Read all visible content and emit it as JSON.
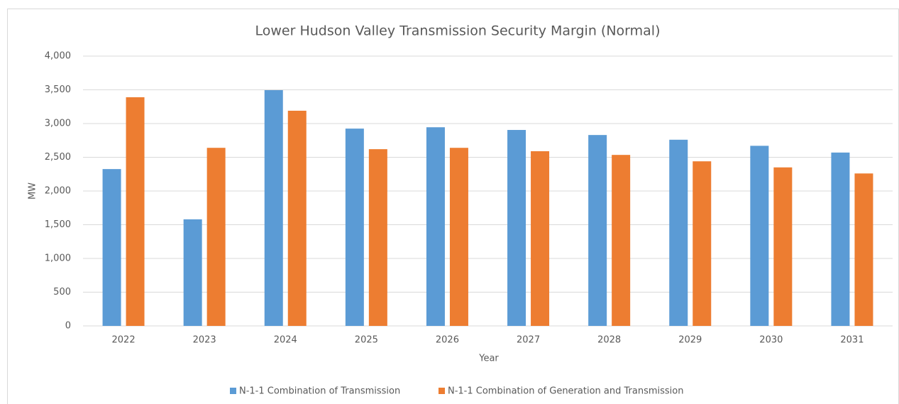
{
  "chart_data": {
    "type": "bar",
    "title": "Lower Hudson Valley Transmission Security Margin (Normal)",
    "x_label": "Year",
    "y_label": "MW",
    "categories": [
      "2022",
      "2023",
      "2024",
      "2025",
      "2026",
      "2027",
      "2028",
      "2029",
      "2030",
      "2031"
    ],
    "series": [
      {
        "name": "N-1-1 Combination of Transmission",
        "color": "#5b9bd5",
        "values": [
          2325,
          1580,
          3495,
          2925,
          2945,
          2905,
          2830,
          2760,
          2670,
          2570
        ]
      },
      {
        "name": "N-1-1 Combination of Generation and Transmission",
        "color": "#ed7d31",
        "values": [
          3390,
          2640,
          3190,
          2620,
          2640,
          2590,
          2535,
          2440,
          2350,
          2260
        ]
      }
    ],
    "ylim": [
      0,
      4000
    ],
    "yticks": [
      0,
      500,
      {
        "value": 1000,
        "label": "1,000"
      },
      {
        "value": 1500,
        "label": "1,500"
      },
      {
        "value": 2000,
        "label": "2,000"
      },
      {
        "value": 2500,
        "label": "2,500"
      },
      {
        "value": 3000,
        "label": "3,000"
      },
      {
        "value": 3500,
        "label": "3,500"
      },
      {
        "value": 4000,
        "label": "4,000"
      }
    ],
    "grid": true,
    "legend": "bottom"
  }
}
